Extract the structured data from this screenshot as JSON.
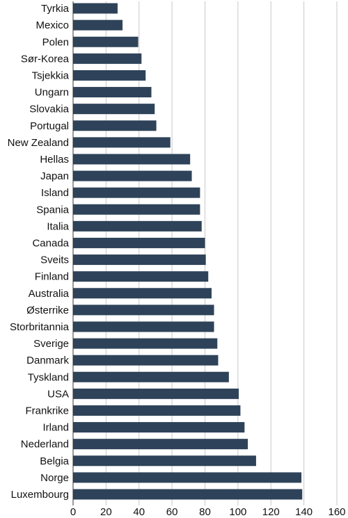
{
  "chart_data": {
    "type": "bar",
    "orientation": "horizontal",
    "title": "",
    "xlabel": "",
    "ylabel": "",
    "xlim": [
      0,
      160
    ],
    "x_ticks": [
      0,
      20,
      40,
      60,
      80,
      100,
      120,
      140,
      160
    ],
    "grid": "vertical",
    "legend": "none",
    "bar_color": "#2e4359",
    "categories": [
      "Tyrkia",
      "Mexico",
      "Polen",
      "Sør-Korea",
      "Tsjekkia",
      "Ungarn",
      "Slovakia",
      "Portugal",
      "New Zealand",
      "Hellas",
      "Japan",
      "Island",
      "Spania",
      "Italia",
      "Canada",
      "Sveits",
      "Finland",
      "Australia",
      "Østerrike",
      "Storbritannia",
      "Sverige",
      "Danmark",
      "Tyskland",
      "USA",
      "Frankrike",
      "Irland",
      "Nederland",
      "Belgia",
      "Norge",
      "Luxembourg"
    ],
    "values": [
      27,
      30,
      39.5,
      41.5,
      44,
      47.5,
      49.5,
      50.5,
      59,
      71,
      72,
      77,
      77,
      78,
      80,
      80.5,
      82,
      84,
      85.5,
      85.5,
      87.5,
      88,
      94.5,
      100.5,
      101.5,
      104,
      106,
      111,
      138.5,
      139
    ]
  }
}
